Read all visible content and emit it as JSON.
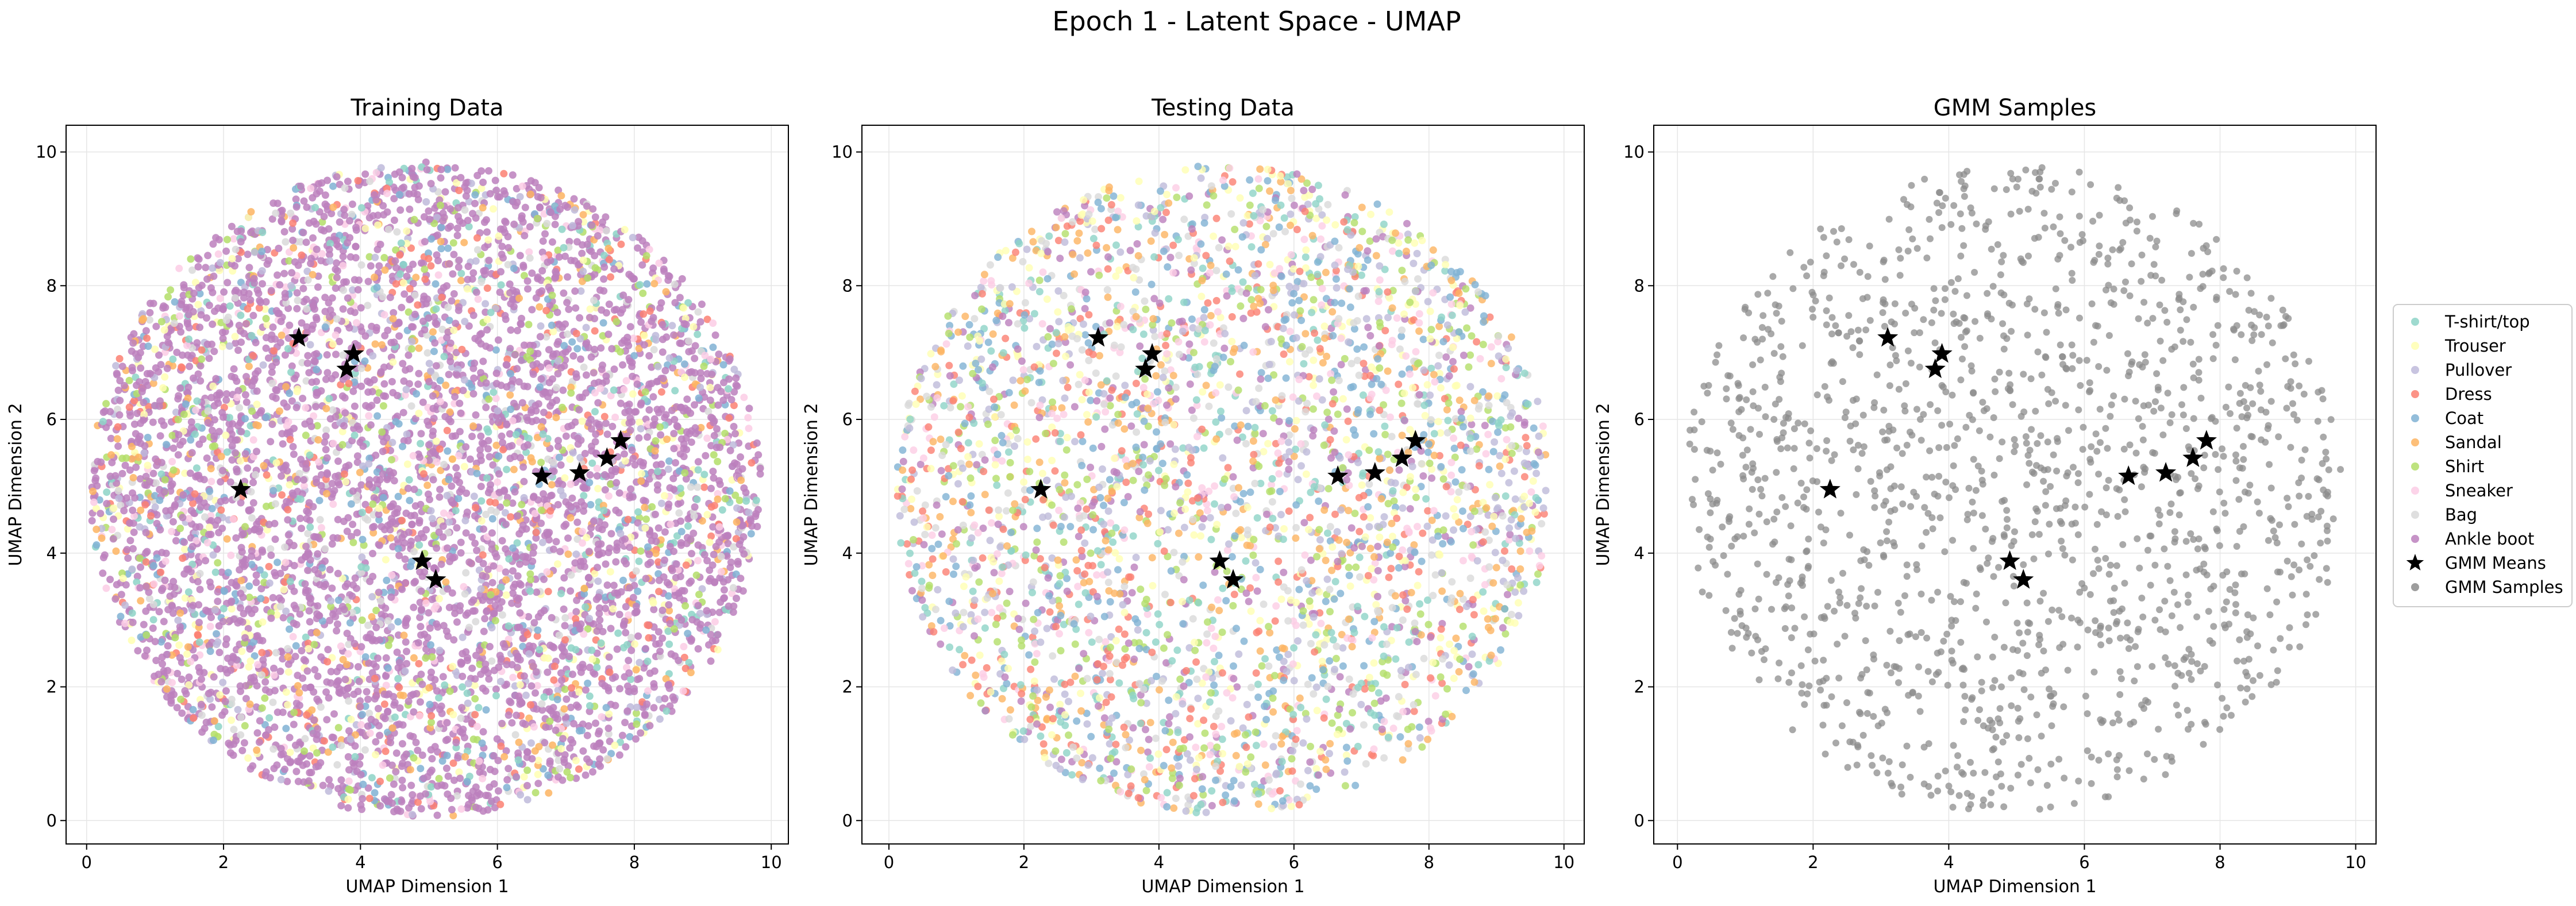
{
  "figure": {
    "suptitle": "Epoch 1 - Latent Space - UMAP"
  },
  "chart_data": [
    {
      "type": "scatter",
      "title": "Training Data",
      "xlabel": "UMAP Dimension 1",
      "ylabel": "UMAP Dimension 2",
      "xlim": [
        -0.3,
        10.25
      ],
      "ylim": [
        -0.35,
        10.4
      ],
      "xticks": [
        0,
        2,
        4,
        6,
        8,
        10
      ],
      "yticks": [
        0,
        2,
        4,
        6,
        8,
        10
      ],
      "grid": true,
      "point_cloud": {
        "center": [
          4.95,
          4.95
        ],
        "radius": 4.9,
        "approx_points": 6000,
        "dominant_class": "Ankle boot"
      }
    },
    {
      "type": "scatter",
      "title": "Testing Data",
      "xlabel": "UMAP Dimension 1",
      "ylabel": "UMAP Dimension 2",
      "xlim": [
        -0.4,
        10.3
      ],
      "ylim": [
        -0.35,
        10.4
      ],
      "xticks": [
        0,
        2,
        4,
        6,
        8,
        10
      ],
      "yticks": [
        0,
        2,
        4,
        6,
        8,
        10
      ],
      "grid": true,
      "point_cloud": {
        "center": [
          4.95,
          4.95
        ],
        "radius": 4.85,
        "approx_points": 3500,
        "dominant_class": "mixed"
      }
    },
    {
      "type": "scatter",
      "title": "GMM Samples",
      "xlabel": "UMAP Dimension 1",
      "ylabel": "UMAP Dimension 2",
      "xlim": [
        -0.35,
        10.3
      ],
      "ylim": [
        -0.35,
        10.4
      ],
      "xticks": [
        0,
        2,
        4,
        6,
        8,
        10
      ],
      "yticks": [
        0,
        2,
        4,
        6,
        8,
        10
      ],
      "grid": true,
      "point_cloud": {
        "center": [
          4.95,
          4.95
        ],
        "radius": 4.85,
        "approx_points": 1500,
        "dominant_class": "GMM Samples"
      }
    }
  ],
  "gmm_means": [
    [
      3.1,
      7.22
    ],
    [
      3.9,
      6.98
    ],
    [
      3.8,
      6.75
    ],
    [
      2.25,
      4.95
    ],
    [
      6.65,
      5.15
    ],
    [
      7.2,
      5.2
    ],
    [
      7.6,
      5.42
    ],
    [
      7.8,
      5.68
    ],
    [
      4.9,
      3.88
    ],
    [
      5.1,
      3.6
    ]
  ],
  "legend": {
    "placement": "right of figure",
    "classes": [
      {
        "label": "T-shirt/top",
        "color": "#8dd3c7"
      },
      {
        "label": "Trouser",
        "color": "#ffffb3"
      },
      {
        "label": "Pullover",
        "color": "#bebada"
      },
      {
        "label": "Dress",
        "color": "#fb8072"
      },
      {
        "label": "Coat",
        "color": "#80b1d3"
      },
      {
        "label": "Sandal",
        "color": "#fdb462"
      },
      {
        "label": "Shirt",
        "color": "#b3de69"
      },
      {
        "label": "Sneaker",
        "color": "#fccde5"
      },
      {
        "label": "Bag",
        "color": "#d9d9d9"
      },
      {
        "label": "Ankle boot",
        "color": "#bc80bd"
      }
    ],
    "means_label": "GMM Means",
    "samples_label": "GMM Samples",
    "means_color": "#000000",
    "samples_color": "#8c8c8c"
  }
}
